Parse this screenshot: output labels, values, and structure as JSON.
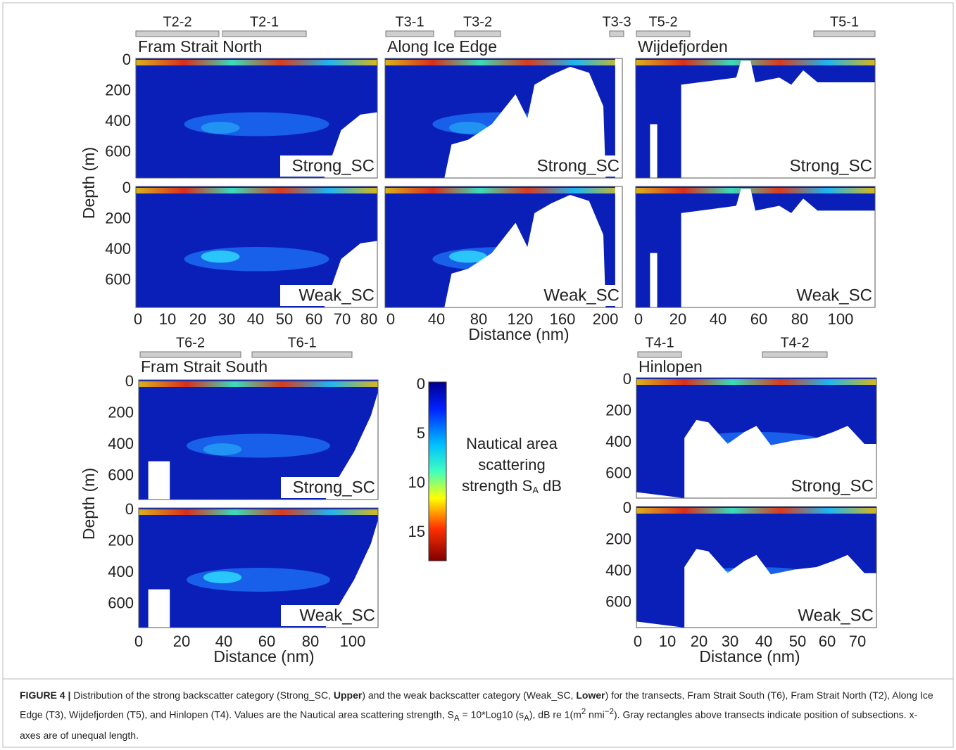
{
  "panels": [
    {
      "title": "Fram Strait North",
      "subsections": [
        "T2-2",
        "T2-1"
      ],
      "subplots": [
        "Strong_SC",
        "Weak_SC"
      ],
      "xticks": [
        0,
        10,
        20,
        30,
        40,
        50,
        60,
        70,
        80
      ],
      "yticks": [
        0,
        200,
        400,
        600
      ],
      "ylabel": "Depth (m)"
    },
    {
      "title": "Along Ice Edge",
      "subsections": [
        "T3-1",
        "T3-2",
        "T3-3"
      ],
      "subplots": [
        "Strong_SC",
        "Weak_SC"
      ],
      "xticks": [
        0,
        40,
        80,
        120,
        160,
        200
      ],
      "xlabel": "Distance (nm)"
    },
    {
      "title": "Wijdefjorden",
      "subsections": [
        "T5-2",
        "T5-1"
      ],
      "subplots": [
        "Strong_SC",
        "Weak_SC"
      ],
      "xticks": [
        0,
        20,
        40,
        60,
        80,
        100
      ]
    },
    {
      "title": "Fram Strait South",
      "subsections": [
        "T6-2",
        "T6-1"
      ],
      "subplots": [
        "Strong_SC",
        "Weak_SC"
      ],
      "xticks": [
        0,
        20,
        40,
        60,
        80,
        100
      ],
      "yticks": [
        0,
        200,
        400,
        600
      ],
      "ylabel": "Depth (m)",
      "xlabel": "Distance (nm)"
    },
    {
      "title": "Hinlopen",
      "subsections": [
        "T4-1",
        "T4-2"
      ],
      "subplots": [
        "Strong_SC",
        "Weak_SC"
      ],
      "xticks": [
        0,
        10,
        20,
        30,
        40,
        50,
        60,
        70
      ],
      "yticks": [
        0,
        200,
        400,
        600
      ],
      "xlabel": "Distance (nm)"
    }
  ],
  "colorbar": {
    "ticks": [
      0,
      5,
      10,
      15
    ],
    "label_lines": [
      "Nautical area",
      "scattering",
      "strength S"
    ],
    "label_subscript": "A",
    "label_end": "dB"
  },
  "caption": [
    {
      "text": "FIGURE 4 |",
      "style": "bold"
    },
    {
      "text": " Distribution of the strong backscatter category (Strong_SC, "
    },
    {
      "text": "Upper",
      "style": "bold"
    },
    {
      "text": ") and the weak backscatter category (Weak_SC, "
    },
    {
      "text": "Lower",
      "style": "bold"
    },
    {
      "text": ") for the transects, Fram Strait South (T6), Fram Strait North (T2), Along Ice Edge (T3), Wijdefjorden (T5), and Hinlopen (T4). Values are the Nautical area scattering strength, S"
    },
    {
      "text": "A",
      "style": "sub"
    },
    {
      "text": " = 10*Log10 (s"
    },
    {
      "text": "A",
      "style": "sub"
    },
    {
      "text": "), dB re 1(m"
    },
    {
      "text": "2",
      "style": "sup"
    },
    {
      "text": " nmi"
    },
    {
      "text": "−2",
      "style": "sup"
    },
    {
      "text": "). Gray rectangles above transects indicate position of subsections. x-axes are of unequal length."
    }
  ]
}
